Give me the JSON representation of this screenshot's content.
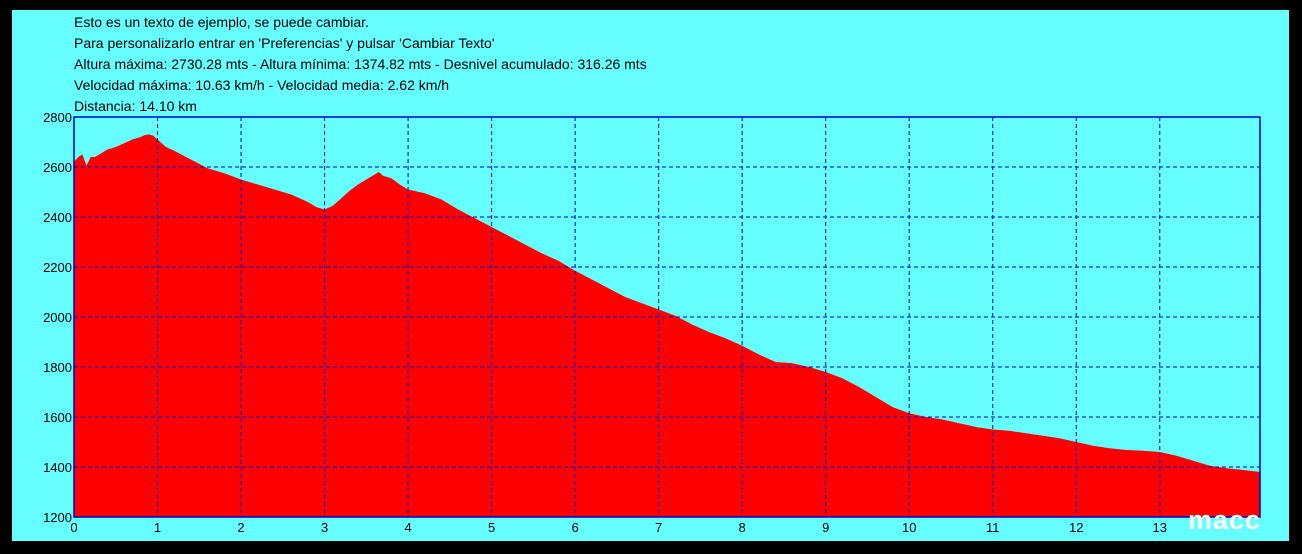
{
  "info": [
    "Esto es un texto de ejemplo, se puede cambiar.",
    "Para personalizarlo entrar en 'Preferencias' y pulsar 'Cambiar Texto'",
    "Altura máxima: 2730.28 mts - Altura mínima: 1374.82 mts - Desnivel acumulado: 316.26 mts",
    "Velocidad máxima: 10.63 km/h - Velocidad media: 2.62 km/h",
    "Distancia: 14.10 km"
  ],
  "watermark": "macc",
  "colors": {
    "background": "#66ffff",
    "fill": "#ff0000",
    "grid": "#0000cc",
    "frame": "#000000"
  },
  "chart_data": {
    "type": "area",
    "title": "",
    "xlabel": "",
    "ylabel": "",
    "xlim": [
      0,
      14.2
    ],
    "ylim": [
      1200,
      2800
    ],
    "xticks": [
      "0",
      "1",
      "2",
      "3",
      "4",
      "5",
      "6",
      "7",
      "8",
      "9",
      "10",
      "11",
      "12",
      "13"
    ],
    "yticks": [
      "1200",
      "1400",
      "1600",
      "1800",
      "2000",
      "2200",
      "2400",
      "2600",
      "2800"
    ],
    "grid": true,
    "series": [
      {
        "x": [
          0,
          0.05,
          0.1,
          0.15,
          0.2,
          0.25,
          0.3,
          0.4,
          0.5,
          0.6,
          0.7,
          0.8,
          0.85,
          0.9,
          0.95,
          1.0,
          1.1,
          1.2,
          1.4,
          1.6,
          1.8,
          2.0,
          2.2,
          2.4,
          2.6,
          2.8,
          2.9,
          3.0,
          3.1,
          3.2,
          3.3,
          3.4,
          3.5,
          3.6,
          3.65,
          3.7,
          3.75,
          3.8,
          3.9,
          4.0,
          4.2,
          4.4,
          4.6,
          4.8,
          5.0,
          5.2,
          5.4,
          5.6,
          5.8,
          6.0,
          6.2,
          6.4,
          6.6,
          6.8,
          7.0,
          7.2,
          7.4,
          7.6,
          7.8,
          8.0,
          8.2,
          8.4,
          8.6,
          8.8,
          9.0,
          9.2,
          9.4,
          9.6,
          9.8,
          10.0,
          10.2,
          10.4,
          10.6,
          10.8,
          11.0,
          11.2,
          11.4,
          11.6,
          11.8,
          12.0,
          12.2,
          12.4,
          12.6,
          12.8,
          13.0,
          13.2,
          13.4,
          13.6,
          13.8,
          14.0,
          14.2
        ],
        "values": [
          2620,
          2640,
          2650,
          2605,
          2640,
          2640,
          2650,
          2670,
          2680,
          2695,
          2710,
          2720,
          2728,
          2730,
          2725,
          2710,
          2680,
          2665,
          2630,
          2595,
          2575,
          2550,
          2530,
          2510,
          2490,
          2460,
          2440,
          2430,
          2445,
          2475,
          2505,
          2530,
          2550,
          2570,
          2580,
          2565,
          2560,
          2555,
          2530,
          2510,
          2495,
          2470,
          2430,
          2395,
          2360,
          2325,
          2290,
          2255,
          2225,
          2185,
          2150,
          2115,
          2080,
          2055,
          2030,
          2005,
          1970,
          1940,
          1915,
          1885,
          1850,
          1820,
          1815,
          1800,
          1780,
          1755,
          1720,
          1680,
          1640,
          1615,
          1600,
          1590,
          1575,
          1560,
          1550,
          1545,
          1535,
          1525,
          1515,
          1500,
          1485,
          1475,
          1468,
          1465,
          1460,
          1445,
          1425,
          1405,
          1395,
          1388,
          1380
        ]
      }
    ]
  }
}
